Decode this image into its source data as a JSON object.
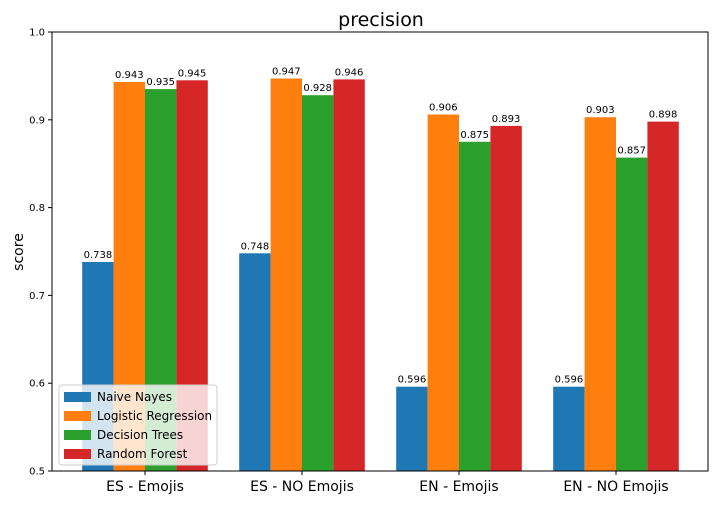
{
  "chart_data": {
    "type": "bar",
    "title": "precision",
    "xlabel": "",
    "ylabel": "score",
    "categories": [
      "ES - Emojis",
      "ES - NO Emojis",
      "EN - Emojis",
      "EN - NO Emojis"
    ],
    "ylim": [
      0.5,
      1.0
    ],
    "yticks": [
      "0.5",
      "0.6",
      "0.7",
      "0.8",
      "0.9",
      "1.0"
    ],
    "grid": false,
    "legend_position": "bottom-left",
    "series": [
      {
        "name": "Naive Nayes",
        "color": "#1f77b4",
        "values": [
          0.738,
          0.748,
          0.596,
          0.596
        ],
        "labels": [
          "0.738",
          "0.748",
          "0.596",
          "0.596"
        ]
      },
      {
        "name": "Logistic Regression",
        "color": "#ff7f0e",
        "values": [
          0.943,
          0.947,
          0.906,
          0.903
        ],
        "labels": [
          "0.943",
          "0.947",
          "0.906",
          "0.903"
        ]
      },
      {
        "name": "Decision Trees",
        "color": "#2ca02c",
        "values": [
          0.935,
          0.928,
          0.875,
          0.857
        ],
        "labels": [
          "0.935",
          "0.928",
          "0.875",
          "0.857"
        ]
      },
      {
        "name": "Random Forest",
        "color": "#d62728",
        "values": [
          0.945,
          0.946,
          0.893,
          0.898
        ],
        "labels": [
          "0.945",
          "0.946",
          "0.893",
          "0.898"
        ]
      }
    ]
  }
}
